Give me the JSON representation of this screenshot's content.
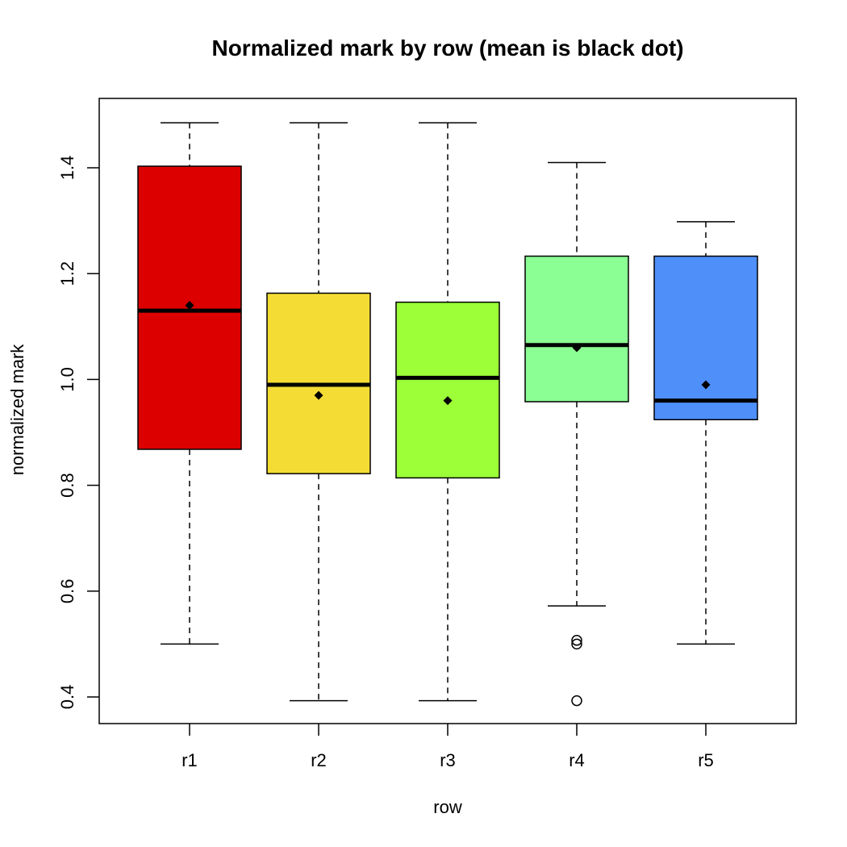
{
  "chart_data": {
    "type": "box",
    "title": "Normalized mark by row (mean is black dot)",
    "xlabel": "row",
    "ylabel": "normalized mark",
    "ylim": [
      0.35,
      1.53
    ],
    "yticks": [
      "0.4",
      "0.6",
      "0.8",
      "1.0",
      "1.2",
      "1.4"
    ],
    "categories": [
      "r1",
      "r2",
      "r3",
      "r4",
      "r5"
    ],
    "colors": [
      "#dd0000",
      "#f4dc34",
      "#9cff38",
      "#8cff94",
      "#4e8ffa"
    ],
    "boxes": [
      {
        "name": "r1",
        "whisker_low": 0.5,
        "q1": 0.868,
        "median": 1.13,
        "q3": 1.403,
        "whisker_high": 1.485,
        "mean": 1.14,
        "outliers": []
      },
      {
        "name": "r2",
        "whisker_low": 0.393,
        "q1": 0.822,
        "median": 0.99,
        "q3": 1.163,
        "whisker_high": 1.485,
        "mean": 0.97,
        "outliers": []
      },
      {
        "name": "r3",
        "whisker_low": 0.393,
        "q1": 0.814,
        "median": 1.003,
        "q3": 1.146,
        "whisker_high": 1.485,
        "mean": 0.96,
        "outliers": []
      },
      {
        "name": "r4",
        "whisker_low": 0.572,
        "q1": 0.958,
        "median": 1.065,
        "q3": 1.233,
        "whisker_high": 1.41,
        "mean": 1.06,
        "outliers": [
          0.507,
          0.5,
          0.393
        ]
      },
      {
        "name": "r5",
        "whisker_low": 0.5,
        "q1": 0.924,
        "median": 0.96,
        "q3": 1.233,
        "whisker_high": 1.298,
        "mean": 0.99,
        "outliers": []
      }
    ]
  }
}
